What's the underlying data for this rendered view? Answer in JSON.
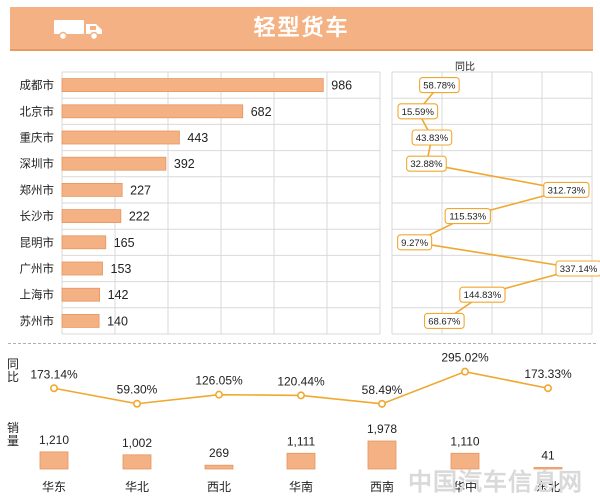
{
  "header": {
    "title": "轻型货车",
    "icon": "truck-icon",
    "banner_color": "#f4b183"
  },
  "side_labels": {
    "tongbi_top": "同",
    "tongbi_bottom": "比",
    "sales_top": "销",
    "sales_bottom": "量"
  },
  "watermark": "中国汽车信息网",
  "chart_data": [
    {
      "type": "bar",
      "orientation": "horizontal",
      "categories": [
        "成都市",
        "北京市",
        "重庆市",
        "深圳市",
        "郑州市",
        "长沙市",
        "昆明市",
        "广州市",
        "上海市",
        "苏州市"
      ],
      "values": [
        986,
        682,
        443,
        392,
        227,
        222,
        165,
        153,
        142,
        140
      ],
      "xlim": [
        0,
        1200
      ],
      "grid": true,
      "bar_color": "#f4b183"
    },
    {
      "type": "line",
      "title": "同比",
      "categories": [
        "成都市",
        "北京市",
        "重庆市",
        "深圳市",
        "郑州市",
        "长沙市",
        "昆明市",
        "广州市",
        "上海市",
        "苏州市"
      ],
      "values": [
        58.78,
        15.59,
        43.83,
        32.88,
        312.73,
        115.53,
        9.27,
        337.14,
        144.83,
        68.67
      ],
      "labels": [
        "58.78%",
        "15.59%",
        "43.83%",
        "32.88%",
        "312.73%",
        "115.53%",
        "9.27%",
        "337.14%",
        "144.83%",
        "68.67%"
      ],
      "xlim": [
        0,
        400
      ],
      "grid": true,
      "line_color": "#f0a830"
    },
    {
      "type": "line",
      "categories": [
        "华东",
        "华北",
        "西北",
        "华南",
        "西南",
        "华中",
        "东北"
      ],
      "values": [
        173.14,
        59.3,
        126.05,
        120.44,
        58.49,
        295.02,
        173.33
      ],
      "labels": [
        "173.14%",
        "59.30%",
        "126.05%",
        "120.44%",
        "58.49%",
        "295.02%",
        "173.33%"
      ],
      "line_color": "#f0a830"
    },
    {
      "type": "bar",
      "categories": [
        "华东",
        "华北",
        "西北",
        "华南",
        "西南",
        "华中",
        "东北"
      ],
      "category_labels": [
        "华东",
        "华北",
        "西北",
        "华南",
        "西南",
        "华中",
        "东北"
      ],
      "values": [
        1210,
        1002,
        269,
        1111,
        1978,
        1110,
        41
      ],
      "labels": [
        "1,210",
        "1,002",
        "269",
        "1,111",
        "1,978",
        "1,110",
        "41"
      ],
      "bar_color": "#f4b183"
    }
  ]
}
